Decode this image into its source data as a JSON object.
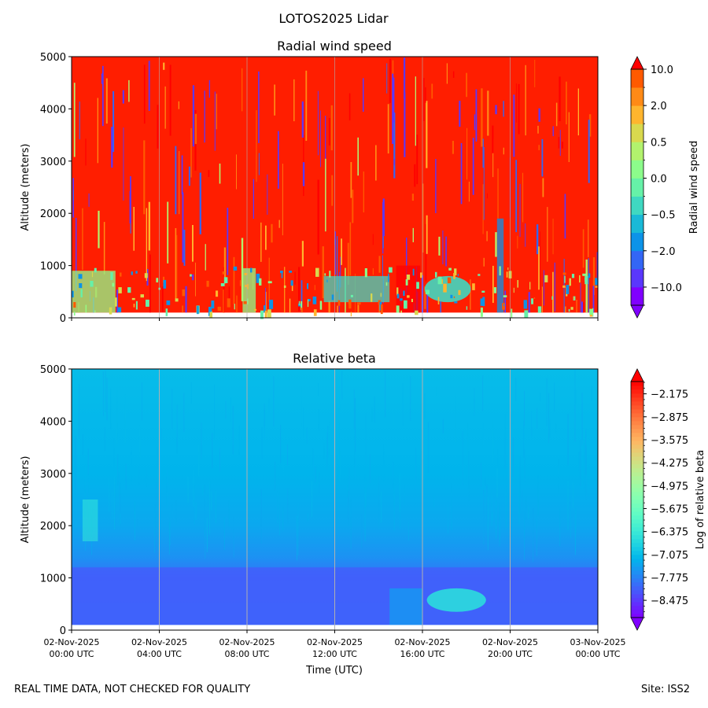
{
  "figure": {
    "suptitle": "LOTOS2025 Lidar",
    "footer_left": "REAL TIME DATA, NOT CHECKED FOR QUALITY",
    "footer_right": "Site: ISS2"
  },
  "chart_data": [
    {
      "type": "heatmap",
      "title": "Radial wind speed",
      "ylabel": "Altitude (meters)",
      "xlabel": "",
      "ylim": [
        0,
        5000
      ],
      "yticks": [
        0,
        1000,
        2000,
        3000,
        4000,
        5000
      ],
      "ytick_labels": [
        "0",
        "1000",
        "2000",
        "3000",
        "4000",
        "5000"
      ],
      "x_hours_range": [
        0,
        24
      ],
      "xticks_hours": [
        0,
        4,
        8,
        12,
        16,
        20,
        24
      ],
      "data_min_altitude": 100,
      "colorbar": {
        "label": "Radial wind speed",
        "tick_labels": [
          "10.0",
          "2.0",
          "0.5",
          "0.0",
          "−0.5",
          "−2.0",
          "−10.0"
        ],
        "tick_levels": [
          13,
          11,
          9,
          7,
          5,
          3,
          1
        ],
        "levels": 13,
        "colors": [
          "#8000ff",
          "#5a37fc",
          "#3366f5",
          "#0c93e8",
          "#19b9d7",
          "#3fd8c1",
          "#66f1a8",
          "#8cfc8b",
          "#b2f26d",
          "#d9d94e",
          "#ffb52e",
          "#ff8a16",
          "#ff5a00",
          "#ff0000"
        ],
        "extend": "both"
      },
      "features": [
        {
          "label": "near-surface weak winds",
          "hours": [
            0,
            2
          ],
          "altitude": [
            100,
            900
          ],
          "value": "0.0"
        },
        {
          "label": "weak wind patch",
          "hours": [
            7.8,
            8.4
          ],
          "altitude": [
            100,
            950
          ],
          "value": "0.0"
        },
        {
          "label": "blue patch",
          "hours": [
            11.5,
            14.5
          ],
          "altitude": [
            300,
            800
          ],
          "value": "−0.5"
        },
        {
          "label": "red column",
          "hours": [
            14.8,
            15.9
          ],
          "altitude": [
            100,
            1000
          ],
          "value": "10.0"
        },
        {
          "label": "low-level jet blob",
          "hours": [
            16.1,
            18.2
          ],
          "altitude": [
            300,
            800
          ],
          "value": "−0.5"
        },
        {
          "label": "thin plume",
          "hours": [
            19.4,
            19.7
          ],
          "altitude": [
            100,
            1900
          ],
          "value": "−2.0"
        }
      ]
    },
    {
      "type": "heatmap",
      "title": "Relative beta",
      "ylabel": "Altitude (meters)",
      "xlabel": "Time (UTC)",
      "ylim": [
        0,
        5000
      ],
      "yticks": [
        0,
        1000,
        2000,
        3000,
        4000,
        5000
      ],
      "ytick_labels": [
        "0",
        "1000",
        "2000",
        "3000",
        "4000",
        "5000"
      ],
      "x_hours_range": [
        0,
        24
      ],
      "xticks_hours": [
        0,
        4,
        8,
        12,
        16,
        20,
        24
      ],
      "xtick_labels": [
        {
          "date": "02-Nov-2025",
          "time": "00:00 UTC"
        },
        {
          "date": "02-Nov-2025",
          "time": "04:00 UTC"
        },
        {
          "date": "02-Nov-2025",
          "time": "08:00 UTC"
        },
        {
          "date": "02-Nov-2025",
          "time": "12:00 UTC"
        },
        {
          "date": "02-Nov-2025",
          "time": "16:00 UTC"
        },
        {
          "date": "02-Nov-2025",
          "time": "20:00 UTC"
        },
        {
          "date": "03-Nov-2025",
          "time": "00:00 UTC"
        }
      ],
      "data_min_altitude": 100,
      "colorbar": {
        "label": "Log of relative beta",
        "range": [
          -9.0,
          -1.8
        ],
        "tick_values": [
          -2.175,
          -2.875,
          -3.575,
          -4.275,
          -4.975,
          -5.675,
          -6.375,
          -7.075,
          -7.775,
          -8.475
        ],
        "tick_labels": [
          "−2.175",
          "−2.875",
          "−3.575",
          "−4.275",
          "−4.975",
          "−5.675",
          "−6.375",
          "−7.075",
          "−7.775",
          "−8.475"
        ],
        "minor_step": 0.175,
        "extend": "both"
      },
      "profile": [
        {
          "altitude": 100,
          "value": -7.85
        },
        {
          "altitude": 1000,
          "value": -7.95
        },
        {
          "altitude": 1400,
          "value": -7.6
        },
        {
          "altitude": 2000,
          "value": -7.35
        },
        {
          "altitude": 3000,
          "value": -7.2
        },
        {
          "altitude": 4000,
          "value": -7.15
        },
        {
          "altitude": 5000,
          "value": -7.1
        }
      ],
      "features": [
        {
          "label": "boundary layer",
          "hours": [
            0,
            24
          ],
          "altitude": [
            100,
            1200
          ],
          "value": -8.15
        },
        {
          "label": "aerosol layer",
          "hours": [
            16.2,
            18.9
          ],
          "altitude": [
            350,
            800
          ],
          "value": -6.6
        },
        {
          "label": "thin cloud",
          "hours": [
            0.5,
            1.2
          ],
          "altitude": [
            1700,
            2500
          ],
          "value": -6.5
        },
        {
          "label": "near-surface enhancement",
          "hours": [
            14.5,
            16
          ],
          "altitude": [
            100,
            800
          ],
          "value": -7.3
        }
      ]
    }
  ]
}
